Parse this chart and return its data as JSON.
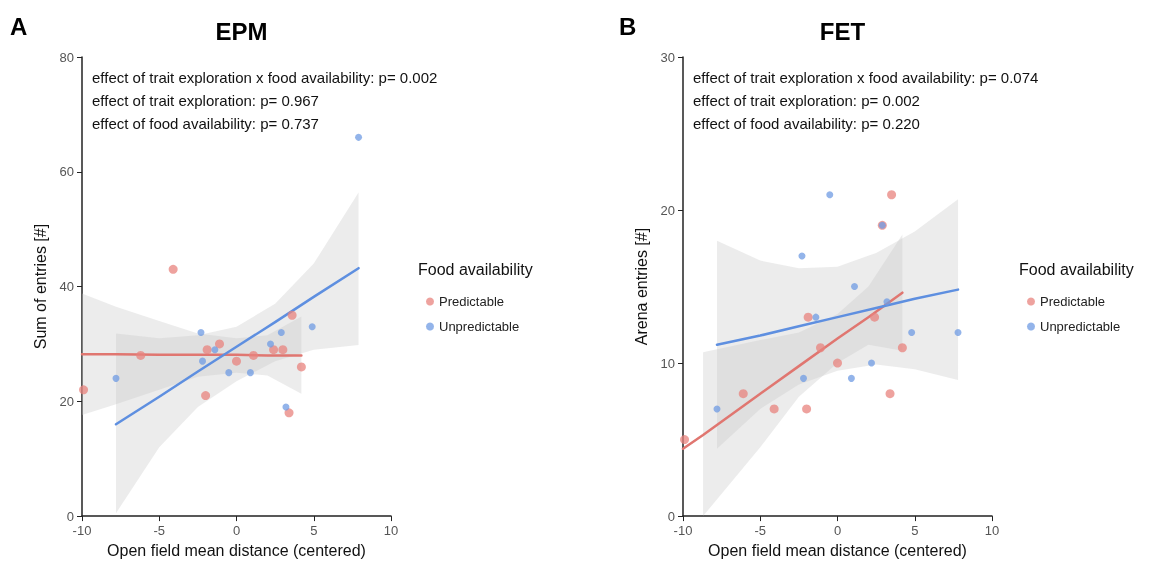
{
  "chart_data": [
    {
      "type": "scatter",
      "title": "EPM",
      "xlabel": "Open field mean distance (centered)",
      "ylabel": "Sum of entries [#]",
      "legend_title": "Food availability",
      "legend": "right",
      "grid": false,
      "marker": "circle",
      "annotations": [
        "A",
        "effect of trait exploration x food availability: p= 0.002",
        "effect of trait exploration: p= 0.967",
        "effect of food availability: p= 0.737"
      ],
      "xlim": [
        -10,
        10
      ],
      "xticks": [
        -10,
        -5,
        0,
        5,
        10
      ],
      "ylim": [
        0,
        80
      ],
      "yticks": [
        0,
        20,
        40,
        60,
        80
      ],
      "series": [
        {
          "name": "Predictable",
          "color": "#e8837d",
          "x": [
            -9.9,
            -4.1,
            -6.2,
            -2.0,
            -1.9,
            -1.1,
            0.0,
            1.1,
            2.4,
            3.0,
            3.6,
            4.2,
            3.4
          ],
          "values": [
            22,
            43,
            28,
            21,
            29,
            30,
            27,
            28,
            29,
            29,
            35,
            26,
            18
          ]
        },
        {
          "name": "Unpredictable",
          "color": "#6f9be3",
          "x": [
            -7.8,
            -2.3,
            -2.2,
            -1.4,
            -0.5,
            0.9,
            2.2,
            2.9,
            3.2,
            4.9,
            7.9
          ],
          "values": [
            24,
            32,
            27,
            29,
            25,
            25,
            30,
            32,
            19,
            33,
            66
          ]
        },
        {
          "type": "line",
          "marker": "none",
          "line_style": "solid",
          "color": "#e07670",
          "x": [
            -10,
            -7.8,
            -5,
            -2.5,
            0,
            2,
            4.2
          ],
          "values": [
            28.2,
            28.2,
            28.1,
            28.1,
            28.1,
            28.0,
            28.0
          ],
          "lower": [
            17.6,
            19.5,
            22,
            24.3,
            25,
            24.5,
            21.3
          ],
          "upper": [
            38.8,
            36.5,
            34,
            31.8,
            31,
            31.5,
            34.8
          ]
        },
        {
          "type": "line",
          "marker": "none",
          "line_style": "solid",
          "color": "#5e8fe0",
          "x": [
            -7.8,
            -5,
            -2.5,
            0,
            2.5,
            5,
            7.9
          ],
          "values": [
            16,
            20.8,
            25.2,
            29.5,
            33.8,
            38.2,
            43.2
          ],
          "lower": [
            0.5,
            12,
            19,
            23.5,
            27,
            29,
            29.8
          ],
          "upper": [
            31.8,
            31,
            31.5,
            33,
            37,
            44,
            56.4
          ]
        }
      ]
    },
    {
      "type": "scatter",
      "title": "FET",
      "xlabel": "Open field mean distance (centered)",
      "ylabel": "Arena entries [#]",
      "legend_title": "Food availability",
      "legend": "right",
      "grid": false,
      "marker": "circle",
      "annotations": [
        "B",
        "effect of trait exploration x food availability: p= 0.074",
        "effect of trait exploration: p= 0.002",
        "effect of food availability: p= 0.220"
      ],
      "xlim": [
        -10,
        10
      ],
      "xticks": [
        -10,
        -5,
        0,
        5,
        10
      ],
      "ylim": [
        0,
        30
      ],
      "yticks": [
        0,
        10,
        20,
        30
      ],
      "series": [
        {
          "name": "Predictable",
          "color": "#e8837d",
          "x": [
            -9.9,
            -6.1,
            -4.1,
            -2.0,
            -1.9,
            -1.1,
            0.0,
            2.4,
            3.4,
            4.2,
            3.5,
            2.9
          ],
          "values": [
            5,
            8,
            7,
            7,
            13,
            11,
            10,
            13,
            8,
            11,
            21,
            19
          ]
        },
        {
          "name": "Unpredictable",
          "color": "#6f9be3",
          "x": [
            -7.8,
            -2.3,
            -2.2,
            -1.4,
            -0.5,
            0.9,
            1.1,
            2.2,
            2.9,
            3.2,
            4.8,
            7.8
          ],
          "values": [
            7,
            17,
            9,
            13,
            21,
            9,
            15,
            10,
            19,
            14,
            12,
            12
          ]
        },
        {
          "type": "line",
          "marker": "none",
          "line_style": "solid",
          "color": "#e07670",
          "x": [
            -10,
            -8.7,
            -5,
            -2.5,
            0,
            2,
            4.2
          ],
          "values": [
            4.4,
            5.3,
            8.0,
            9.8,
            11.6,
            13.0,
            14.6
          ],
          "lower": [
            null,
            0,
            4.5,
            7.8,
            10,
            11.2,
            10.8
          ],
          "upper": [
            null,
            10.7,
            11.5,
            12,
            13.2,
            15,
            18.4
          ]
        },
        {
          "type": "line",
          "marker": "none",
          "line_style": "solid",
          "color": "#5e8fe0",
          "x": [
            -7.8,
            -5,
            -2.5,
            0,
            2.5,
            5,
            7.8
          ],
          "values": [
            11.2,
            11.8,
            12.4,
            13.0,
            13.6,
            14.2,
            14.8
          ],
          "lower": [
            4.4,
            7,
            8.6,
            9.5,
            9.9,
            9.6,
            8.9
          ],
          "upper": [
            18,
            16.7,
            16.2,
            16.3,
            17.2,
            18.6,
            20.7
          ]
        }
      ]
    }
  ]
}
